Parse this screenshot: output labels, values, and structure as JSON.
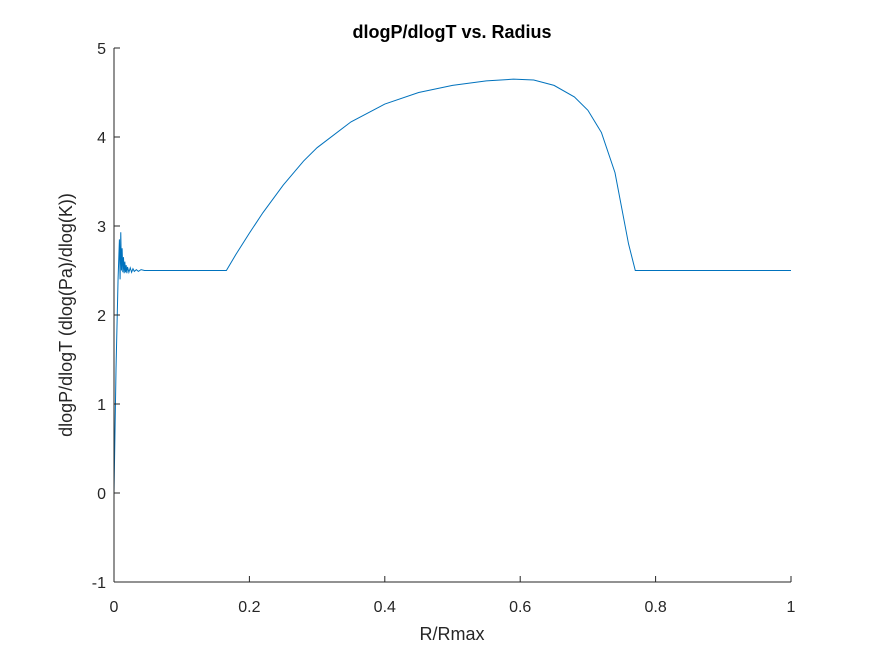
{
  "chart_data": {
    "type": "line",
    "title": "dlogP/dlogT vs. Radius",
    "xlabel": "R/Rmax",
    "ylabel": "dlogP/dlogT (dlog(Pa)/dlog(K))",
    "xlim": [
      0,
      1
    ],
    "ylim": [
      -1,
      5
    ],
    "xticks": [
      0,
      0.2,
      0.4,
      0.6,
      0.8,
      1
    ],
    "xtick_labels": [
      "0",
      "0.2",
      "0.4",
      "0.6",
      "0.8",
      "1"
    ],
    "yticks": [
      -1,
      0,
      1,
      2,
      3,
      4,
      5
    ],
    "ytick_labels": [
      "-1",
      "0",
      "1",
      "2",
      "3",
      "4",
      "5"
    ],
    "grid": false,
    "legend": "none",
    "line_color": "#0072bd",
    "series": [
      {
        "x": [
          0,
          0.003,
          0.006,
          0.008,
          0.009,
          0.01,
          0.011,
          0.012,
          0.013,
          0.014,
          0.015,
          0.016,
          0.017,
          0.018,
          0.019,
          0.02,
          0.022,
          0.024,
          0.026,
          0.028,
          0.03,
          0.033,
          0.036,
          0.04,
          0.045,
          0.05,
          0.06,
          0.08,
          0.1,
          0.13,
          0.166,
          0.18,
          0.2,
          0.22,
          0.25,
          0.28,
          0.3,
          0.35,
          0.4,
          0.45,
          0.5,
          0.55,
          0.59,
          0.62,
          0.65,
          0.68,
          0.7,
          0.72,
          0.74,
          0.75,
          0.76,
          0.77,
          0.8,
          0.9,
          1.0
        ],
        "y": [
          0.0,
          1.4,
          2.4,
          2.85,
          2.4,
          2.93,
          2.5,
          2.75,
          2.48,
          2.65,
          2.47,
          2.6,
          2.48,
          2.56,
          2.47,
          2.54,
          2.48,
          2.53,
          2.48,
          2.52,
          2.49,
          2.51,
          2.49,
          2.51,
          2.5,
          2.5,
          2.5,
          2.5,
          2.5,
          2.5,
          2.5,
          2.68,
          2.92,
          3.15,
          3.46,
          3.73,
          3.88,
          4.17,
          4.37,
          4.5,
          4.58,
          4.63,
          4.65,
          4.64,
          4.58,
          4.45,
          4.3,
          4.05,
          3.6,
          3.2,
          2.8,
          2.5,
          2.5,
          2.5,
          2.5
        ]
      }
    ]
  }
}
